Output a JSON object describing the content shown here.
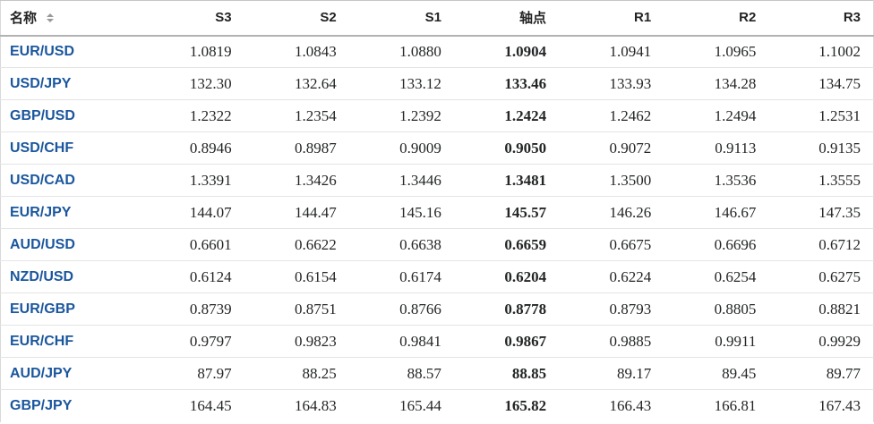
{
  "table": {
    "headers": [
      "名称",
      "S3",
      "S2",
      "S1",
      "轴点",
      "R1",
      "R2",
      "R3"
    ],
    "pivot_values_index": 3,
    "rows": [
      {
        "pair": "EUR/USD",
        "values": [
          "1.0819",
          "1.0843",
          "1.0880",
          "1.0904",
          "1.0941",
          "1.0965",
          "1.1002"
        ]
      },
      {
        "pair": "USD/JPY",
        "values": [
          "132.30",
          "132.64",
          "133.12",
          "133.46",
          "133.93",
          "134.28",
          "134.75"
        ]
      },
      {
        "pair": "GBP/USD",
        "values": [
          "1.2322",
          "1.2354",
          "1.2392",
          "1.2424",
          "1.2462",
          "1.2494",
          "1.2531"
        ]
      },
      {
        "pair": "USD/CHF",
        "values": [
          "0.8946",
          "0.8987",
          "0.9009",
          "0.9050",
          "0.9072",
          "0.9113",
          "0.9135"
        ]
      },
      {
        "pair": "USD/CAD",
        "values": [
          "1.3391",
          "1.3426",
          "1.3446",
          "1.3481",
          "1.3500",
          "1.3536",
          "1.3555"
        ]
      },
      {
        "pair": "EUR/JPY",
        "values": [
          "144.07",
          "144.47",
          "145.16",
          "145.57",
          "146.26",
          "146.67",
          "147.35"
        ]
      },
      {
        "pair": "AUD/USD",
        "values": [
          "0.6601",
          "0.6622",
          "0.6638",
          "0.6659",
          "0.6675",
          "0.6696",
          "0.6712"
        ]
      },
      {
        "pair": "NZD/USD",
        "values": [
          "0.6124",
          "0.6154",
          "0.6174",
          "0.6204",
          "0.6224",
          "0.6254",
          "0.6275"
        ]
      },
      {
        "pair": "EUR/GBP",
        "values": [
          "0.8739",
          "0.8751",
          "0.8766",
          "0.8778",
          "0.8793",
          "0.8805",
          "0.8821"
        ]
      },
      {
        "pair": "EUR/CHF",
        "values": [
          "0.9797",
          "0.9823",
          "0.9841",
          "0.9867",
          "0.9885",
          "0.9911",
          "0.9929"
        ]
      },
      {
        "pair": "AUD/JPY",
        "values": [
          "87.97",
          "88.25",
          "88.57",
          "88.85",
          "89.17",
          "89.45",
          "89.77"
        ]
      },
      {
        "pair": "GBP/JPY",
        "values": [
          "164.45",
          "164.83",
          "165.44",
          "165.82",
          "166.43",
          "166.81",
          "167.43"
        ]
      }
    ]
  },
  "icons": {
    "name_sort": "sort-arrows-icon"
  },
  "colors": {
    "pair_link": "#1a569d",
    "header_text": "#232323",
    "value_text": "#232526",
    "row_border": "#e4e4e4",
    "header_border": "#b2b2b2",
    "outer_border": "#d9d9d9",
    "sort_icon": "#999999",
    "background": "#ffffff"
  }
}
